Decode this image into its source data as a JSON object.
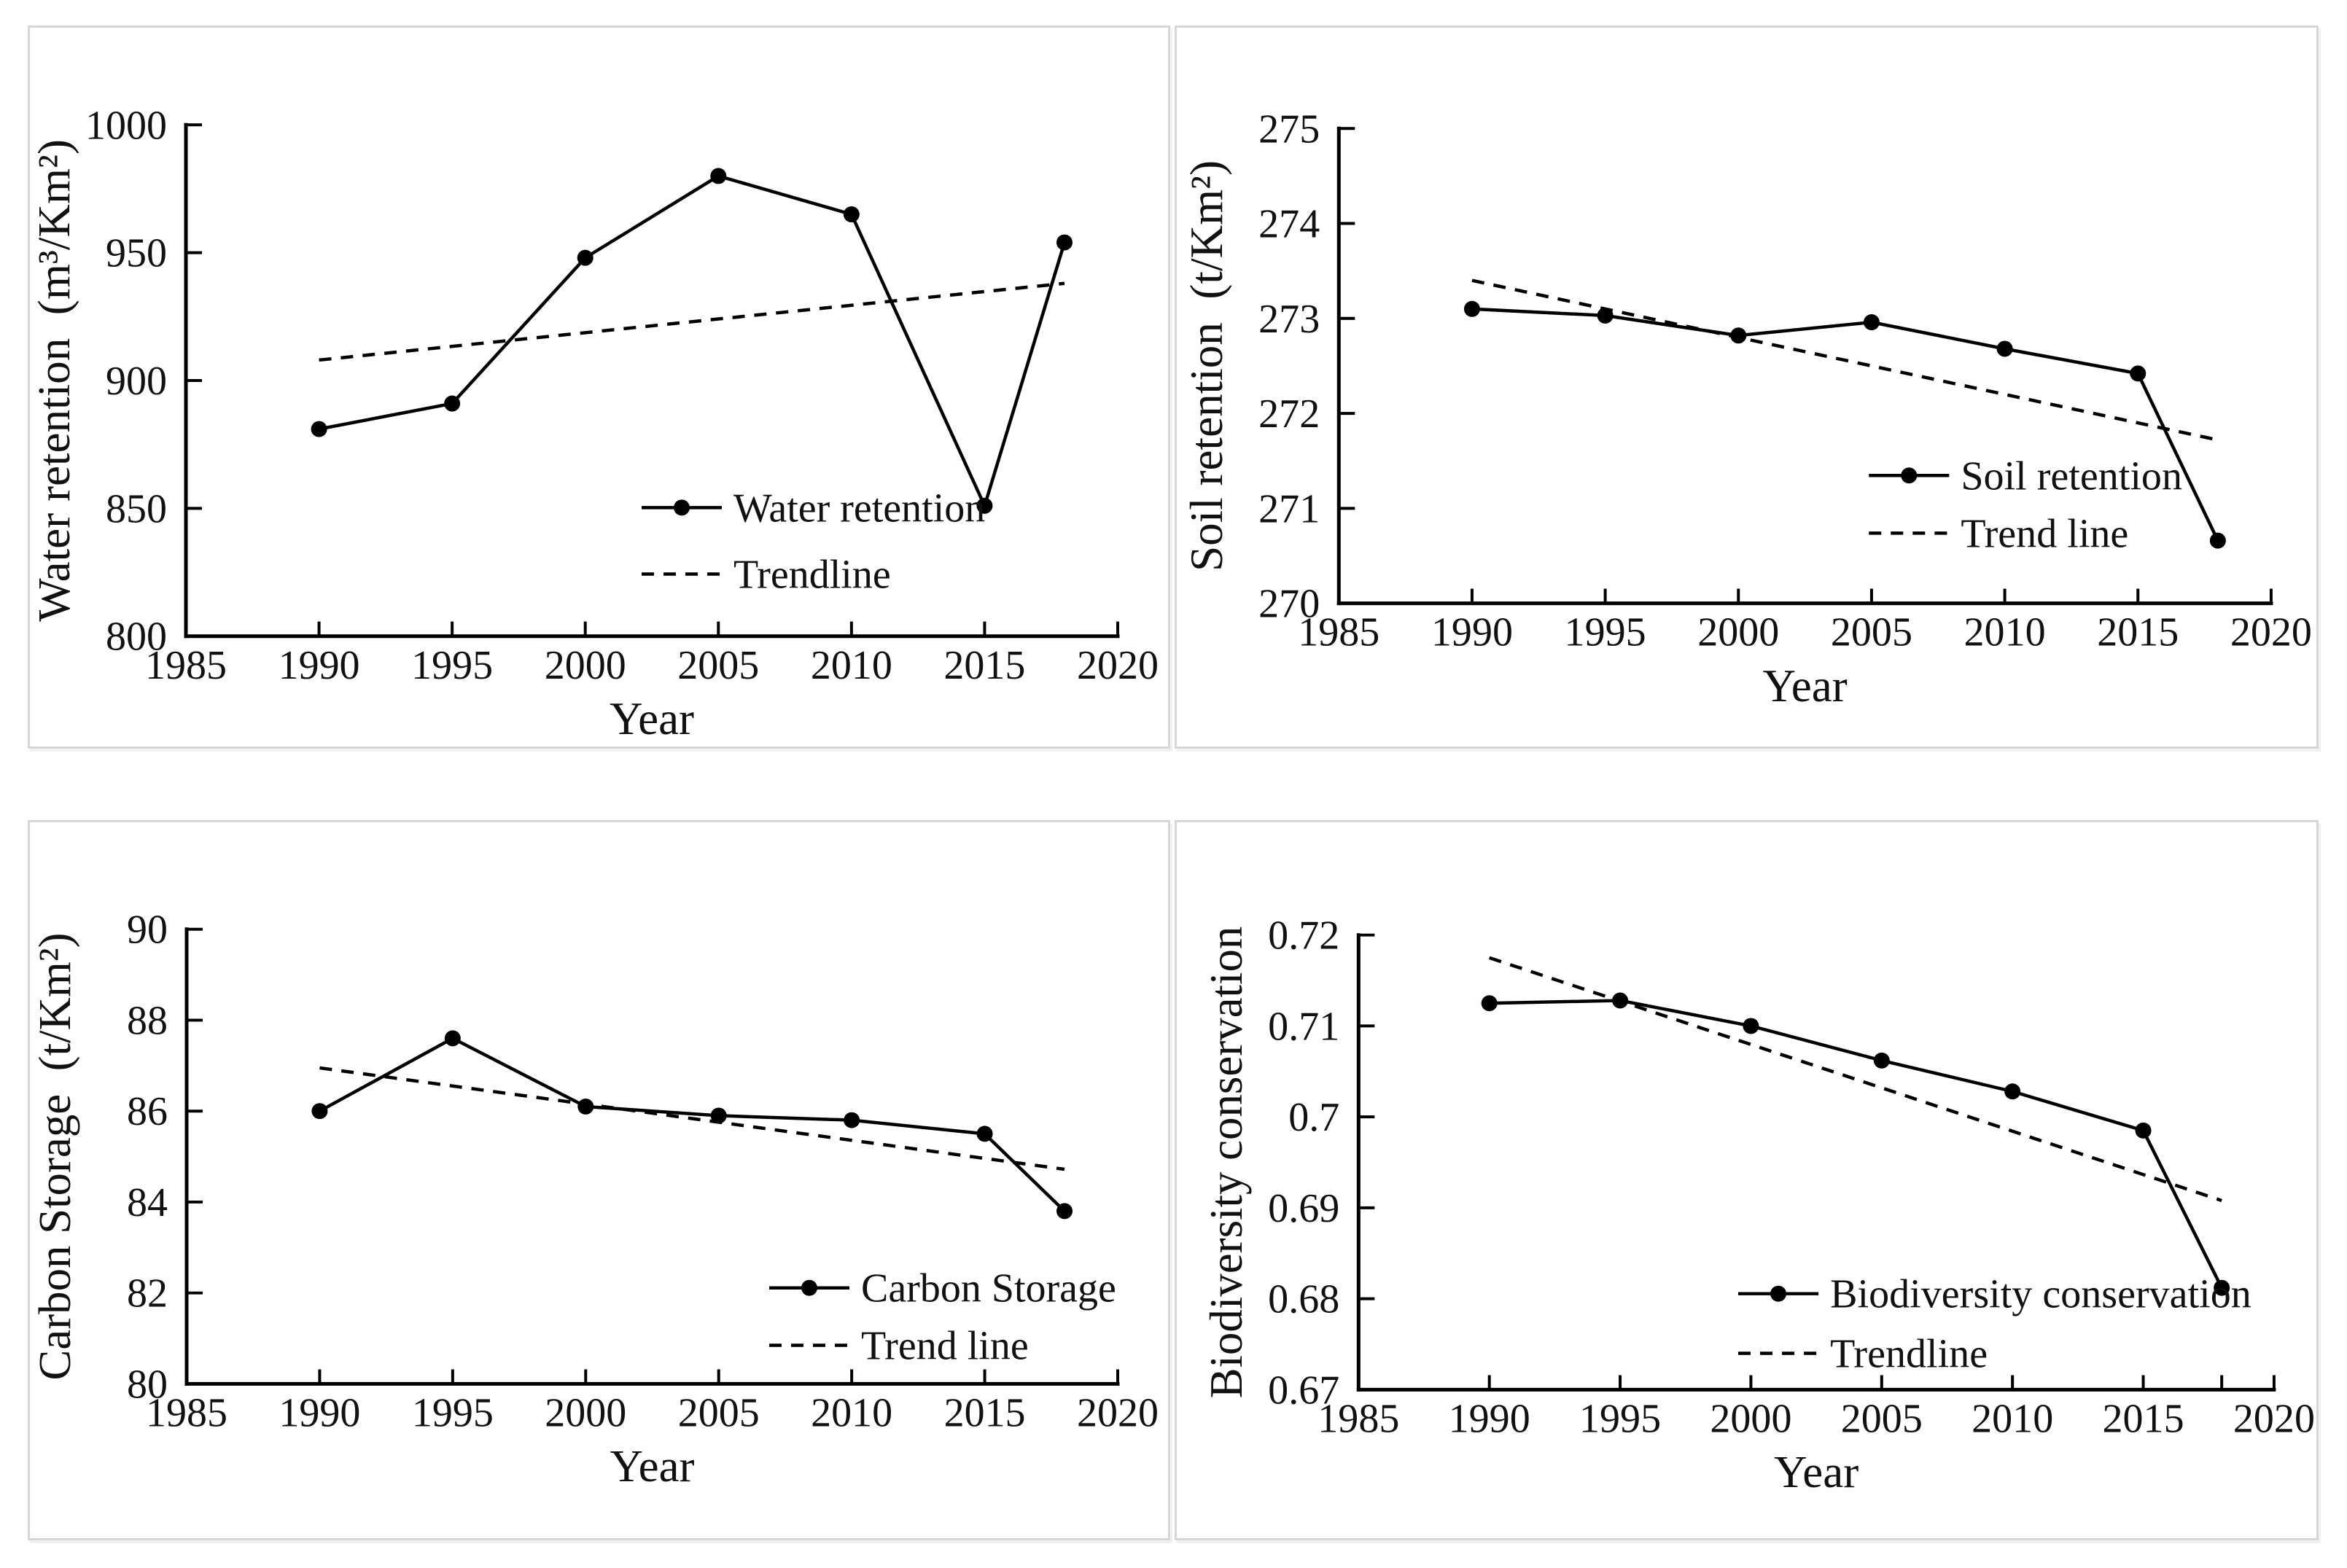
{
  "figure": {
    "background_color": "#ffffff",
    "panel_border_color": "#d6d6d6",
    "line_color": "#000000",
    "arrangement": "2x2-grid"
  },
  "chart_data": [
    {
      "type": "line",
      "name": "water-retention-chart",
      "xlabel": "Year",
      "ylabel": "Water retention  (m³/Km²)",
      "x": [
        1990,
        1995,
        2000,
        2005,
        2010,
        2015,
        2018
      ],
      "series": [
        {
          "name": "Water retention",
          "style": "solid-with-circle-markers",
          "values": [
            881,
            891,
            948,
            980,
            965,
            851,
            954
          ]
        },
        {
          "name": "Trendline",
          "style": "dashed",
          "x": [
            1990,
            2018
          ],
          "values": [
            908,
            938
          ]
        }
      ],
      "xlim": [
        1985,
        2020
      ],
      "xticks": [
        1985,
        1990,
        1995,
        2000,
        2005,
        2010,
        2015,
        2020
      ],
      "ylim": [
        800,
        1000
      ],
      "yticks": [
        800,
        850,
        900,
        950,
        1000
      ],
      "ytick_labels": [
        "800",
        "850",
        "900",
        "950",
        "1000"
      ],
      "grid": false,
      "legend_position": "inside-bottom-right",
      "layout": {
        "plot": [
          214,
          133,
          1492,
          833
        ],
        "legend": [
          839,
          657,
          748
        ]
      }
    },
    {
      "type": "line",
      "name": "soil-retention-chart",
      "xlabel": "Year",
      "ylabel": "Soil retention  (t/Km²)",
      "x": [
        1990,
        1995,
        2000,
        2005,
        2010,
        2015,
        2018
      ],
      "series": [
        {
          "name": "Soil retention",
          "style": "solid-with-circle-markers",
          "values": [
            273.1,
            273.03,
            272.82,
            272.96,
            272.68,
            272.42,
            270.66
          ]
        },
        {
          "name": "Trend line",
          "style": "dashed",
          "x": [
            1990,
            2018
          ],
          "values": [
            273.4,
            271.72
          ]
        }
      ],
      "xlim": [
        1985,
        2020
      ],
      "xticks": [
        1985,
        1990,
        1995,
        2000,
        2005,
        2010,
        2015,
        2020
      ],
      "ylim": [
        270,
        275
      ],
      "yticks": [
        270,
        271,
        272,
        273,
        274,
        275
      ],
      "ytick_labels": [
        "270",
        "271",
        "272",
        "273",
        "274",
        "275"
      ],
      "grid": false,
      "legend_position": "inside-middle-right",
      "layout": {
        "plot": [
          222,
          138,
          1499,
          788
        ],
        "legend": [
          948,
          613,
          692
        ]
      }
    },
    {
      "type": "line",
      "name": "carbon-storage-chart",
      "xlabel": "Year",
      "ylabel": "Carbon Storage  (t/Km²)",
      "x": [
        1990,
        1995,
        2000,
        2005,
        2010,
        2015,
        2018
      ],
      "series": [
        {
          "name": "Carbon Storage",
          "style": "solid-with-circle-markers",
          "values": [
            86.0,
            87.6,
            86.1,
            85.9,
            85.8,
            85.5,
            83.8
          ]
        },
        {
          "name": "Trend line",
          "style": "dashed",
          "x": [
            1990,
            2018
          ],
          "values": [
            86.95,
            84.72
          ]
        }
      ],
      "xlim": [
        1985,
        2020
      ],
      "xticks": [
        1985,
        1990,
        1995,
        2000,
        2005,
        2010,
        2015,
        2020
      ],
      "ylim": [
        80,
        90
      ],
      "yticks": [
        80,
        82,
        84,
        86,
        88,
        90
      ],
      "ytick_labels": [
        "80",
        "82",
        "84",
        "86",
        "88",
        "90"
      ],
      "grid": false,
      "legend_position": "inside-bottom-right",
      "layout": {
        "plot": [
          215,
          147,
          1492,
          772
        ],
        "legend": [
          1014,
          640,
          719
        ]
      }
    },
    {
      "type": "line",
      "name": "biodiversity-conservation-chart",
      "xlabel": "Year",
      "ylabel": "Biodiversity conservation",
      "x": [
        1990,
        1995,
        2000,
        2005,
        2010,
        2015,
        2018
      ],
      "series": [
        {
          "name": "Biodiversity conservation",
          "style": "solid-with-circle-markers",
          "values": [
            0.7125,
            0.7128,
            0.71,
            0.7062,
            0.7028,
            0.6985,
            0.6812
          ]
        },
        {
          "name": "Trendline",
          "style": "dashed",
          "x": [
            1990,
            2018
          ],
          "values": [
            0.7175,
            0.6908
          ]
        }
      ],
      "xlim": [
        1985,
        2020
      ],
      "xticks": [
        1985,
        1990,
        1995,
        2000,
        2005,
        2010,
        2015,
        2018,
        2020
      ],
      "xtick_display": [
        1985,
        1990,
        1995,
        2000,
        2005,
        2010,
        2015,
        2020
      ],
      "ylim": [
        0.67,
        0.72
      ],
      "yticks": [
        0.67,
        0.68,
        0.69,
        0.7,
        0.71,
        0.72
      ],
      "ytick_labels": [
        "0.67",
        "0.68",
        "0.69",
        "0.7",
        "0.71",
        "0.72"
      ],
      "grid": false,
      "legend_position": "inside-bottom-center",
      "layout": {
        "plot": [
          249,
          155,
          1503,
          780
        ],
        "legend": [
          769,
          648,
          730
        ]
      }
    }
  ]
}
